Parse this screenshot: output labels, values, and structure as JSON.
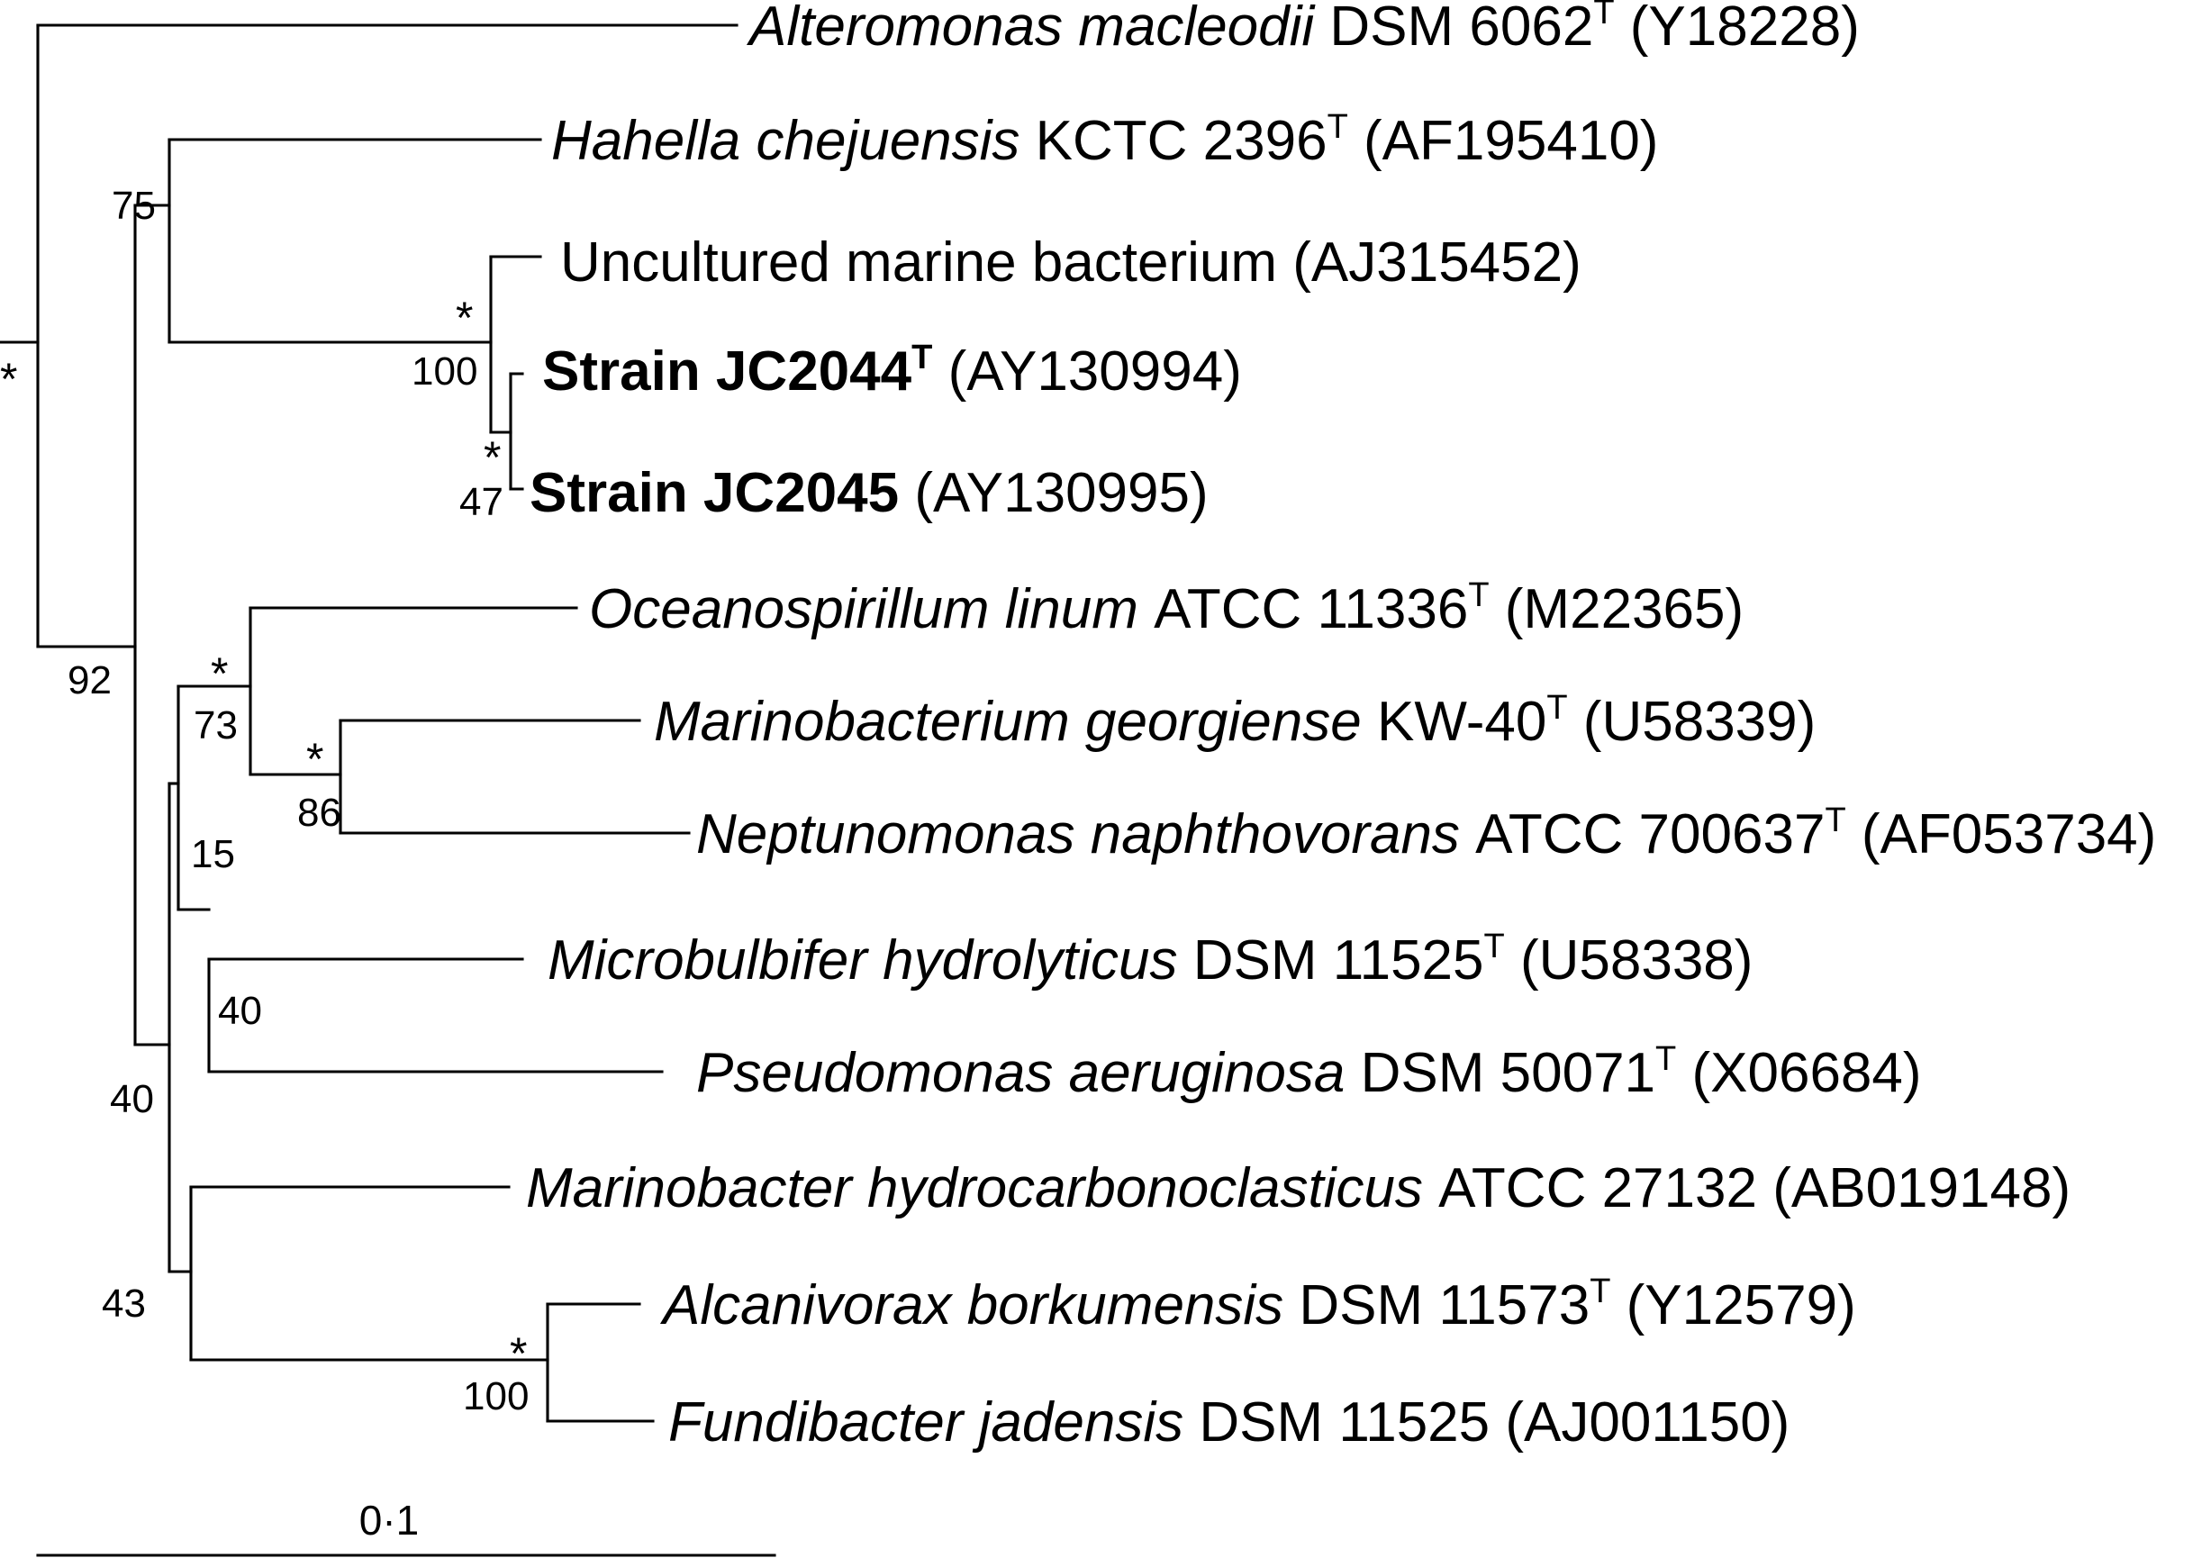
{
  "taxa": [
    {
      "italic": "Alteromonas macleodii",
      "name": "DSM 6062",
      "sup": "T",
      "acc": "(Y18228)",
      "bold": false
    },
    {
      "italic": "Hahella chejuensis",
      "name": "KCTC 2396",
      "sup": "T",
      "acc": "(AF195410)",
      "bold": false
    },
    {
      "italic": "",
      "name": "Uncultured marine bacterium",
      "sup": "",
      "acc": "(AJ315452)",
      "bold": false
    },
    {
      "italic": "",
      "name": "Strain JC2044",
      "sup": "T",
      "acc": "(AY130994)",
      "bold": true
    },
    {
      "italic": "",
      "name": "Strain JC2045",
      "sup": "",
      "acc": "(AY130995)",
      "bold": true
    },
    {
      "italic": "Oceanospirillum linum",
      "name": "ATCC 11336",
      "sup": "T",
      "acc": "(M22365)",
      "bold": false
    },
    {
      "italic": "Marinobacterium georgiense",
      "name": "KW-40",
      "sup": "T",
      "acc": "(U58339)",
      "bold": false
    },
    {
      "italic": "Neptunomonas naphthovorans",
      "name": "ATCC 700637",
      "sup": "T",
      "acc": "(AF053734)",
      "bold": false
    },
    {
      "italic": "Microbulbifer hydrolyticus",
      "name": "DSM 11525",
      "sup": "T",
      "acc": "(U58338)",
      "bold": false
    },
    {
      "italic": "Pseudomonas aeruginosa",
      "name": "DSM 50071",
      "sup": "T",
      "acc": "(X06684)",
      "bold": false
    },
    {
      "italic": "Marinobacter hydrocarbonoclasticus",
      "name": "ATCC 27132",
      "sup": "",
      "acc": "(AB019148)",
      "bold": false
    },
    {
      "italic": "Alcanivorax borkumensis",
      "name": "DSM 11573",
      "sup": "T",
      "acc": "(Y12579)",
      "bold": false
    },
    {
      "italic": "Fundibacter jadensis",
      "name": "DSM 11525",
      "sup": "",
      "acc": "(AJ001150)",
      "bold": false
    }
  ],
  "support_values": {
    "n75": "75",
    "n100a": "100",
    "n47": "47",
    "n92": "92",
    "n73": "73",
    "n86": "86",
    "n15": "15",
    "n40a": "40",
    "n40b": "40",
    "n43": "43",
    "n100b": "100"
  },
  "marker": "*",
  "scale_bar": {
    "label": "0·1"
  }
}
